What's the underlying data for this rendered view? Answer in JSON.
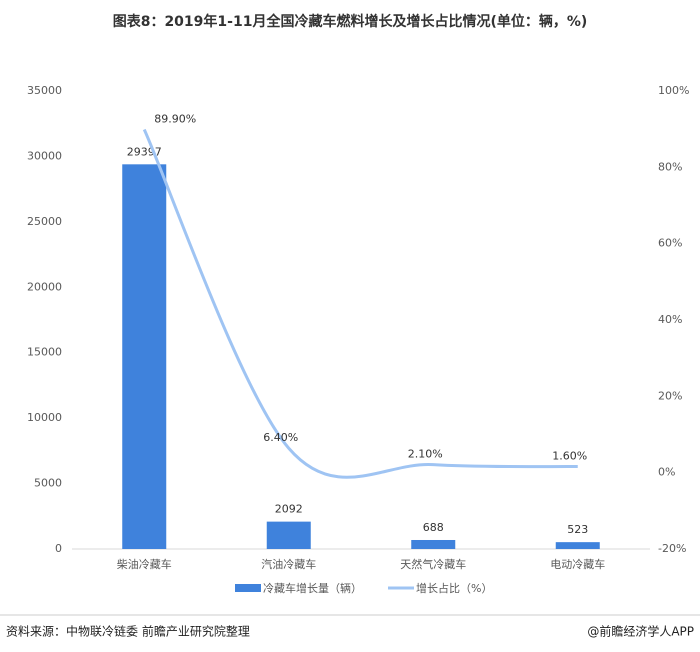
{
  "chart_data": {
    "type": "bar",
    "title": "图表8：2019年1-11月全国冷藏车燃料增长及增长占比情况(单位：辆，%)",
    "categories": [
      "柴油冷藏车",
      "汽油冷藏车",
      "天然气冷藏车",
      "电动冷藏车"
    ],
    "series": [
      {
        "name": "冷藏车增长量（辆）",
        "type": "bar",
        "color": "#3f82dc",
        "values": [
          29397,
          2092,
          688,
          523
        ]
      },
      {
        "name": "增长占比（%）",
        "type": "line",
        "axis": "y2",
        "color": "#9fc4f3",
        "values": [
          89.9,
          6.4,
          2.1,
          1.6
        ],
        "value_labels": [
          "89.90%",
          "6.40%",
          "2.10%",
          "1.60%"
        ]
      }
    ],
    "ylim": [
      0,
      35000
    ],
    "yticks": [
      0,
      5000,
      10000,
      15000,
      20000,
      25000,
      30000,
      35000
    ],
    "y2lim": [
      -20,
      100
    ],
    "y2ticks": [
      {
        "value": -20,
        "label": "-20%"
      },
      {
        "value": 0,
        "label": "0%"
      },
      {
        "value": 20,
        "label": "20%"
      },
      {
        "value": 40,
        "label": "40%"
      },
      {
        "value": 60,
        "label": "60%"
      },
      {
        "value": 80,
        "label": "80%"
      },
      {
        "value": 100,
        "label": "100%"
      }
    ],
    "grid": false,
    "source": "资料来源：中物联冷链委   前瞻产业研究院整理",
    "credit": "@前瞻经济学人APP"
  }
}
